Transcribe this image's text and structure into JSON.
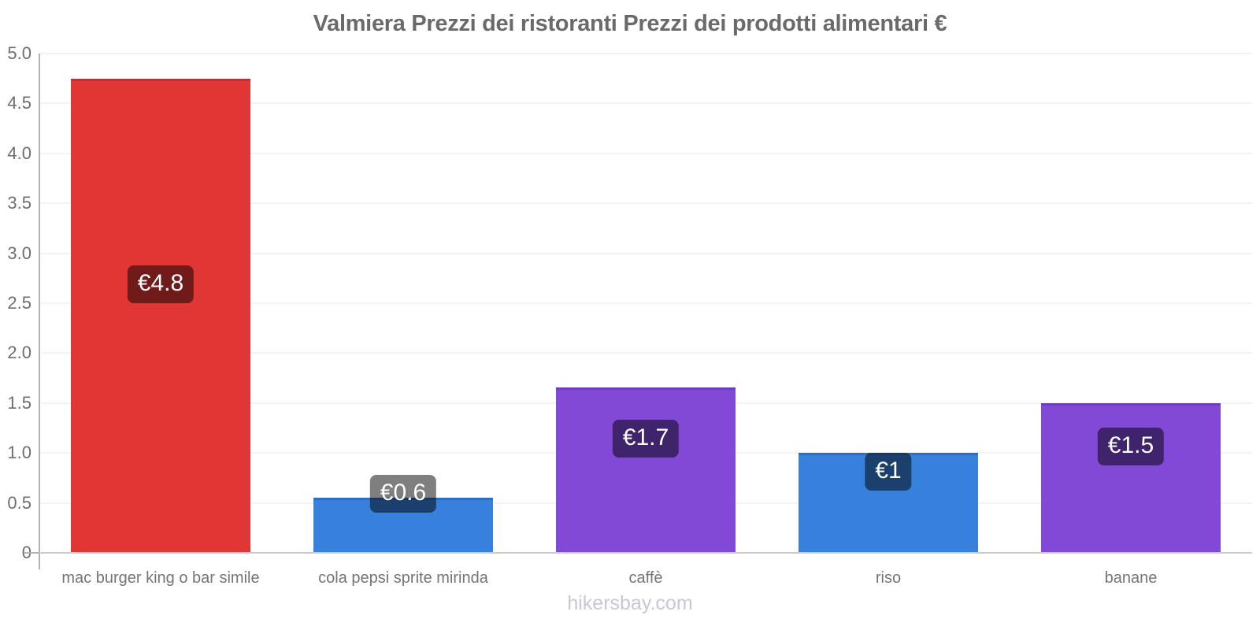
{
  "title": "Valmiera Prezzi dei ristoranti Prezzi dei prodotti alimentari €",
  "watermark": "hikersbay.com",
  "chart_data": {
    "type": "bar",
    "title": "Valmiera Prezzi dei ristoranti Prezzi dei prodotti alimentari €",
    "categories": [
      "mac burger king o bar simile",
      "cola pepsi sprite mirinda",
      "caffè",
      "riso",
      "banane"
    ],
    "values": [
      4.75,
      0.55,
      1.66,
      1.0,
      1.5
    ],
    "value_labels": [
      "€4.8",
      "€0.6",
      "€1.7",
      "€1",
      "€1.5"
    ],
    "bar_colors": [
      "#e13734",
      "#3781dd",
      "#8149d6",
      "#3781dd",
      "#8149d6"
    ],
    "value_label_bg": "rgba(0,0,0,0.5)",
    "value_label_text_color": "#ffffff",
    "xlabel": "",
    "ylabel": "",
    "ylim": [
      0,
      5
    ],
    "yticks": [
      {
        "value": 5,
        "label": "5.0"
      },
      {
        "value": 4.5,
        "label": "4.5"
      },
      {
        "value": 4,
        "label": "4.0"
      },
      {
        "value": 3.5,
        "label": "3.5"
      },
      {
        "value": 3,
        "label": "3.0"
      },
      {
        "value": 2.5,
        "label": "2.5"
      },
      {
        "value": 2,
        "label": "2.0"
      },
      {
        "value": 1.5,
        "label": "1.5"
      },
      {
        "value": 1,
        "label": "1.0"
      },
      {
        "value": 0.5,
        "label": "0.5"
      },
      {
        "value": 0,
        "label": "0"
      }
    ],
    "grid": true,
    "legend": "none"
  }
}
